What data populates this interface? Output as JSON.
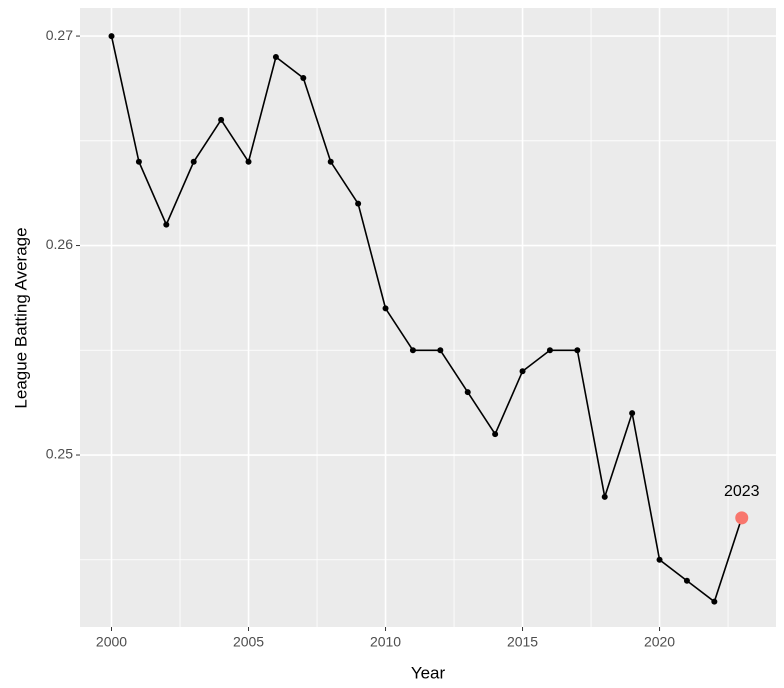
{
  "chart_data": {
    "type": "line",
    "x_label": "Year",
    "y_label": "League Batting Average",
    "x": [
      2000,
      2001,
      2002,
      2003,
      2004,
      2005,
      2006,
      2007,
      2008,
      2009,
      2010,
      2011,
      2012,
      2013,
      2014,
      2015,
      2016,
      2017,
      2018,
      2019,
      2020,
      2021,
      2022,
      2023
    ],
    "series": [
      {
        "color": "#000000",
        "values": [
          0.27,
          0.264,
          0.261,
          0.264,
          0.266,
          0.264,
          0.269,
          0.268,
          0.264,
          0.262,
          0.257,
          0.255,
          0.255,
          0.253,
          0.251,
          0.254,
          0.255,
          0.255,
          0.248,
          0.252,
          0.245,
          0.244,
          0.243,
          0.247
        ]
      }
    ],
    "annotations": [
      {
        "x": 2023,
        "y": 0.247,
        "label": "2023",
        "color": "#f8766d"
      }
    ],
    "xlim": [
      1998.85,
      2024.25
    ],
    "ylim": [
      0.24179,
      0.27134
    ],
    "xticks": [
      2000,
      2005,
      2010,
      2015,
      2020
    ],
    "yticks": [
      0.25,
      0.26,
      0.27
    ],
    "grid": true,
    "minor_grid": true
  }
}
